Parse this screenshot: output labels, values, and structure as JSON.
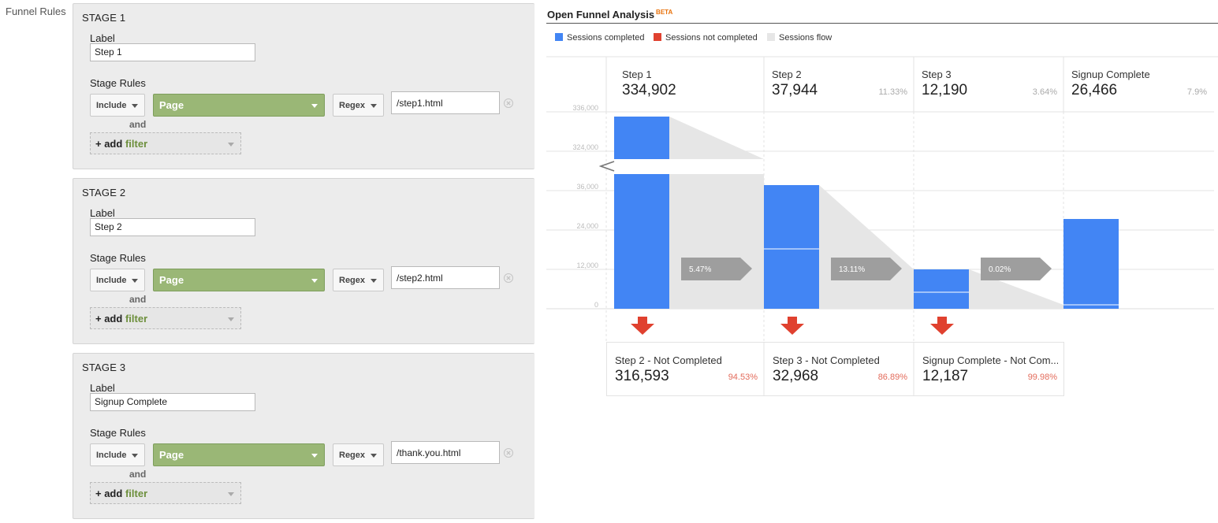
{
  "funnel_rules_label": "Funnel Rules",
  "common": {
    "label_field": "Label",
    "stage_rules": "Stage Rules",
    "include": "Include",
    "page": "Page",
    "regex": "Regex",
    "and": "and",
    "add": "+ add",
    "filter": "filter"
  },
  "stages": [
    {
      "title": "STAGE 1",
      "label_value": "Step 1",
      "rule_value": "/step1.html"
    },
    {
      "title": "STAGE 2",
      "label_value": "Step 2",
      "rule_value": "/step2.html"
    },
    {
      "title": "STAGE 3",
      "label_value": "Signup Complete",
      "rule_value": "/thank.you.html"
    }
  ],
  "analysis": {
    "title": "Open Funnel Analysis",
    "beta": "BETA",
    "legend": [
      {
        "label": "Sessions completed",
        "color": "#4285f4"
      },
      {
        "label": "Sessions not completed",
        "color": "#e0412f"
      },
      {
        "label": "Sessions flow",
        "color": "#e6e6e6"
      }
    ]
  },
  "chart_data": {
    "type": "funnel",
    "y_ticks": [
      "336,000",
      "324,000",
      "36,000",
      "24,000",
      "12,000",
      "0"
    ],
    "y_axis_break": true,
    "steps": [
      {
        "name": "Step 1",
        "value_label": "334,902",
        "value": 334902,
        "pct": ""
      },
      {
        "name": "Step 2",
        "value_label": "37,944",
        "value": 37944,
        "pct": "11.33%"
      },
      {
        "name": "Step 3",
        "value_label": "12,190",
        "value": 12190,
        "pct": "3.64%"
      },
      {
        "name": "Signup Complete",
        "value_label": "26,466",
        "value": 26466,
        "pct": "7.9%"
      }
    ],
    "flow_labels": [
      "5.47%",
      "13.11%",
      "0.02%"
    ],
    "drop_offs": [
      {
        "name": "Step 2 - Not Completed",
        "value_label": "316,593",
        "pct": "94.53%"
      },
      {
        "name": "Step 3 - Not Completed",
        "value_label": "32,968",
        "pct": "86.89%"
      },
      {
        "name": "Signup Complete - Not Com...",
        "value_label": "12,187",
        "pct": "99.98%"
      }
    ]
  }
}
